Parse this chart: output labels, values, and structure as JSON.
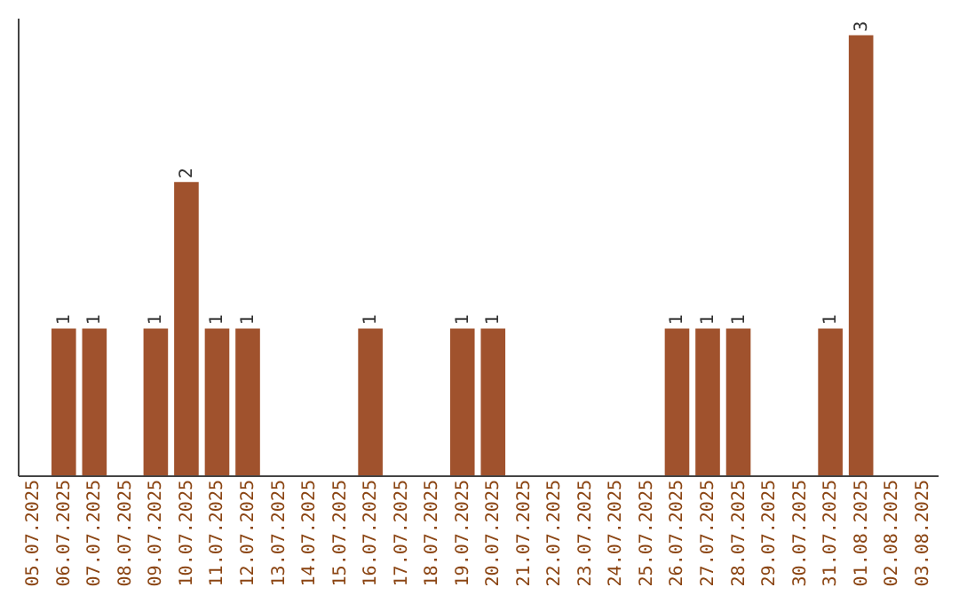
{
  "chart_data": {
    "type": "bar",
    "categories": [
      "05.07.2025",
      "06.07.2025",
      "07.07.2025",
      "08.07.2025",
      "09.07.2025",
      "10.07.2025",
      "11.07.2025",
      "12.07.2025",
      "13.07.2025",
      "14.07.2025",
      "15.07.2025",
      "16.07.2025",
      "17.07.2025",
      "18.07.2025",
      "19.07.2025",
      "20.07.2025",
      "21.07.2025",
      "22.07.2025",
      "23.07.2025",
      "24.07.2025",
      "25.07.2025",
      "26.07.2025",
      "27.07.2025",
      "28.07.2025",
      "29.07.2025",
      "30.07.2025",
      "31.07.2025",
      "01.08.2025",
      "02.08.2025",
      "03.08.2025"
    ],
    "values": [
      null,
      1,
      1,
      null,
      1,
      2,
      1,
      1,
      null,
      null,
      null,
      1,
      null,
      null,
      1,
      1,
      null,
      null,
      null,
      null,
      null,
      1,
      1,
      1,
      null,
      null,
      1,
      3,
      null,
      null
    ],
    "color": "#a0522d",
    "ylim": [
      0,
      3.12
    ],
    "data_labels": true,
    "tick_labels": "x",
    "grid": false
  }
}
